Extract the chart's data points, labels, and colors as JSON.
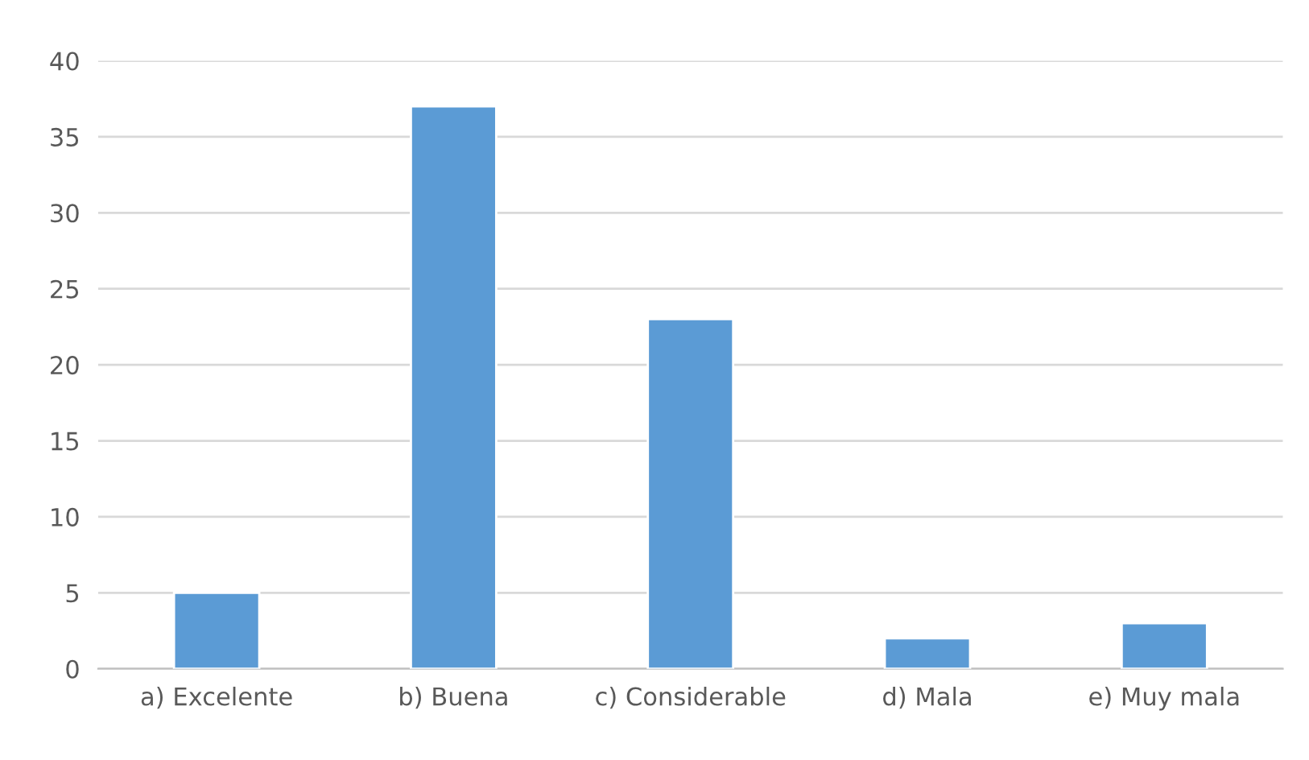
{
  "chart_data": {
    "type": "bar",
    "categories": [
      "a) Excelente",
      "b) Buena",
      "c) Considerable",
      "d) Mala",
      "e) Muy mala"
    ],
    "values": [
      5,
      37,
      23,
      2,
      3
    ],
    "color": "#5b9bd5",
    "ylim": [
      0,
      40
    ],
    "yticks": [
      0,
      5,
      10,
      15,
      20,
      25,
      30,
      35,
      40
    ],
    "grid": "y"
  }
}
